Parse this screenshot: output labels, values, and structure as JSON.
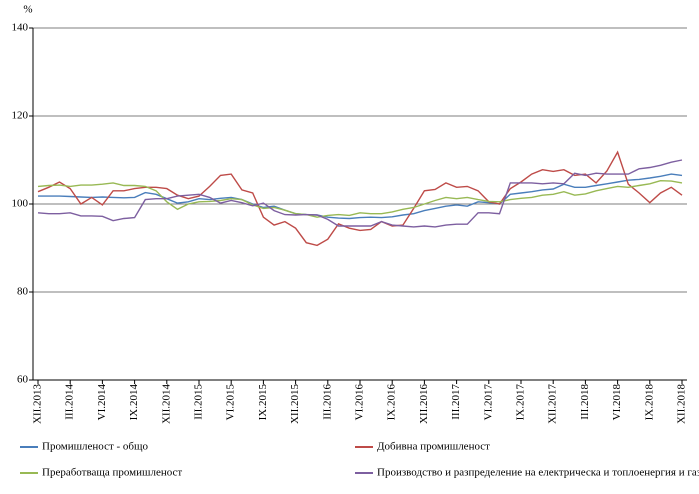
{
  "chart_data": {
    "type": "line",
    "y_unit": "%",
    "categories": [
      "XII.2013",
      null,
      null,
      "III.2014",
      null,
      null,
      "VI.2014",
      null,
      null,
      "IX.2014",
      null,
      null,
      "XII.2014",
      null,
      null,
      "III.2015",
      null,
      null,
      "VI.2015",
      null,
      null,
      "IX.2015",
      null,
      null,
      "XII.2015",
      null,
      null,
      "III.2016",
      null,
      null,
      "VI.2016",
      null,
      null,
      "IX.2016",
      null,
      null,
      "XII.2016",
      null,
      null,
      "III.2017",
      null,
      null,
      "VI.2017",
      null,
      null,
      "IX.2017",
      null,
      null,
      "XII.2017",
      null,
      null,
      "III.2018",
      null,
      null,
      "VI.2018",
      null,
      null,
      "IX.2018",
      null,
      null,
      "XII.2018"
    ],
    "series": [
      {
        "name": "Промишленост - общо",
        "color": "#4a7ebb",
        "values": [
          101.8,
          101.8,
          101.8,
          101.7,
          101.6,
          101.5,
          101.6,
          101.5,
          101.4,
          101.5,
          102.6,
          102.2,
          101.2,
          100.2,
          100.5,
          101.2,
          101.0,
          101.3,
          101.5,
          101.0,
          100.0,
          99.2,
          99.5,
          98.6,
          97.8,
          97.6,
          97.5,
          97.0,
          96.8,
          96.7,
          96.9,
          97.0,
          96.9,
          97.1,
          97.5,
          97.8,
          98.5,
          99.0,
          99.5,
          99.8,
          99.5,
          100.5,
          100.3,
          100.0,
          102.2,
          102.5,
          102.8,
          103.2,
          103.4,
          104.5,
          103.8,
          103.8,
          104.2,
          104.6,
          105.0,
          105.4,
          105.6,
          105.9,
          106.3,
          106.8,
          106.5
        ]
      },
      {
        "name": "Добивна промишленост",
        "color": "#be4b48",
        "values": [
          102.8,
          103.8,
          105.0,
          103.5,
          100.0,
          101.5,
          99.8,
          103.0,
          103.0,
          103.5,
          103.8,
          103.8,
          103.5,
          102.0,
          101.2,
          101.8,
          104.0,
          106.5,
          106.8,
          103.2,
          102.5,
          97.0,
          95.2,
          96.0,
          94.5,
          91.2,
          90.6,
          92.0,
          95.5,
          94.5,
          94.0,
          94.2,
          96.0,
          95.0,
          95.2,
          99.0,
          103.0,
          103.3,
          104.8,
          103.8,
          104.0,
          103.0,
          100.5,
          100.0,
          103.5,
          105.0,
          106.8,
          107.8,
          107.4,
          107.8,
          106.5,
          106.8,
          104.8,
          107.5,
          111.8,
          104.5,
          102.5,
          100.3,
          102.5,
          103.8,
          102.0
        ]
      },
      {
        "name": "Преработваща промишленост",
        "color": "#98b954",
        "values": [
          104.0,
          104.2,
          104.3,
          104.0,
          104.3,
          104.3,
          104.5,
          104.8,
          104.2,
          104.2,
          104.0,
          103.0,
          100.5,
          98.8,
          100.0,
          100.5,
          100.6,
          100.8,
          101.2,
          101.0,
          99.8,
          99.0,
          99.2,
          98.6,
          97.8,
          97.6,
          97.0,
          97.4,
          97.6,
          97.4,
          98.0,
          97.8,
          97.8,
          98.2,
          98.8,
          99.2,
          100.0,
          100.8,
          101.5,
          101.2,
          101.5,
          101.0,
          100.6,
          100.5,
          101.0,
          101.3,
          101.5,
          102.0,
          102.2,
          102.8,
          102.0,
          102.3,
          103.0,
          103.5,
          104.0,
          103.8,
          104.2,
          104.6,
          105.3,
          105.2,
          104.8
        ]
      },
      {
        "name": "Производство и разпределение на електрическа и топлоенергия и газ",
        "color": "#7d5fa0",
        "values": [
          98.0,
          97.8,
          97.8,
          98.0,
          97.3,
          97.3,
          97.2,
          96.2,
          96.7,
          96.9,
          101.0,
          101.2,
          101.2,
          101.8,
          102.0,
          102.2,
          101.5,
          100.2,
          100.8,
          100.3,
          99.6,
          100.2,
          98.5,
          97.6,
          97.5,
          97.6,
          97.5,
          96.5,
          95.0,
          95.0,
          95.0,
          95.0,
          96.0,
          95.2,
          95.0,
          94.8,
          95.0,
          94.8,
          95.2,
          95.4,
          95.4,
          98.0,
          98.0,
          97.8,
          104.8,
          104.8,
          104.8,
          104.6,
          104.8,
          104.6,
          107.0,
          106.5,
          107.0,
          106.8,
          106.8,
          106.8,
          108.0,
          108.3,
          108.8,
          109.5,
          110.0
        ]
      }
    ],
    "ylim": [
      60,
      140
    ],
    "yticks": [
      60,
      80,
      100,
      120,
      140
    ],
    "grid": true,
    "legend": "bottom"
  }
}
